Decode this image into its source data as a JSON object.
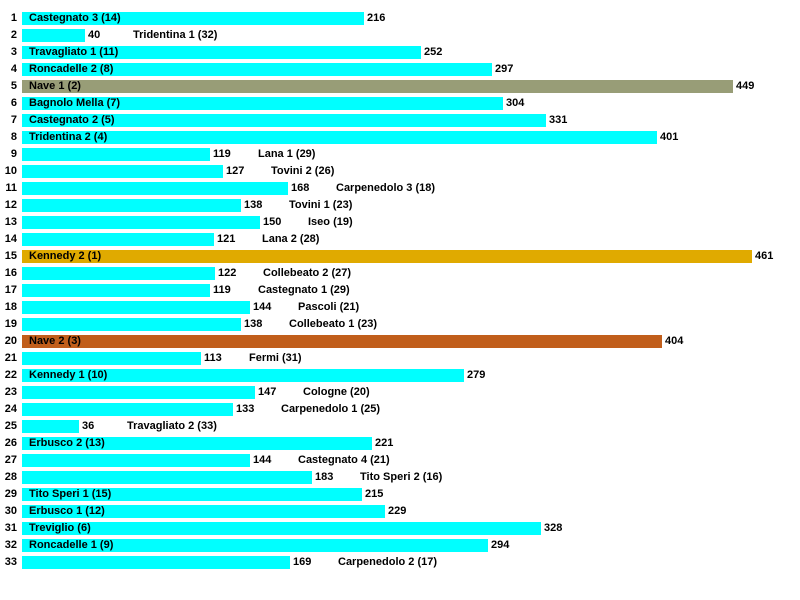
{
  "page": {
    "background": "#FFFFFF",
    "text_color": "#000000"
  },
  "chart_data": {
    "type": "bar",
    "orientation": "horizontal",
    "title": "",
    "xlabel": "",
    "ylabel": "",
    "value_range": [
      0,
      461
    ],
    "grid": false,
    "legend": false,
    "colors": {
      "default_bar": "#00FFFF",
      "highlight_olive": "#989D77",
      "highlight_gold": "#E0AA00",
      "highlight_chocolate": "#C15E1B",
      "text": "#000000",
      "background": "#FFFFFF"
    },
    "rows": [
      {
        "rank": "1",
        "label": "Castegnato 3 (14)",
        "value": 216,
        "label_position": "inside",
        "color": "#00FFFF"
      },
      {
        "rank": "2",
        "label": "Tridentina 1 (32)",
        "value": 40,
        "label_position": "outside",
        "color": "#00FFFF"
      },
      {
        "rank": "3",
        "label": "Travagliato 1 (11)",
        "value": 252,
        "label_position": "inside",
        "color": "#00FFFF"
      },
      {
        "rank": "4",
        "label": "Roncadelle 2 (8)",
        "value": 297,
        "label_position": "inside",
        "color": "#00FFFF"
      },
      {
        "rank": "5",
        "label": "Nave 1 (2)",
        "value": 449,
        "label_position": "inside",
        "color": "#989D77"
      },
      {
        "rank": "6",
        "label": "Bagnolo Mella (7)",
        "value": 304,
        "label_position": "inside",
        "color": "#00FFFF"
      },
      {
        "rank": "7",
        "label": "Castegnato 2 (5)",
        "value": 331,
        "label_position": "inside",
        "color": "#00FFFF"
      },
      {
        "rank": "8",
        "label": "Tridentina 2 (4)",
        "value": 401,
        "label_position": "inside",
        "color": "#00FFFF"
      },
      {
        "rank": "9",
        "label": "Lana 1 (29)",
        "value": 119,
        "label_position": "outside",
        "color": "#00FFFF"
      },
      {
        "rank": "10",
        "label": "Tovini 2 (26)",
        "value": 127,
        "label_position": "outside",
        "color": "#00FFFF"
      },
      {
        "rank": "11",
        "label": "Carpenedolo 3 (18)",
        "value": 168,
        "label_position": "outside",
        "color": "#00FFFF"
      },
      {
        "rank": "12",
        "label": "Tovini 1 (23)",
        "value": 138,
        "label_position": "outside",
        "color": "#00FFFF"
      },
      {
        "rank": "13",
        "label": "Iseo (19)",
        "value": 150,
        "label_position": "outside",
        "color": "#00FFFF"
      },
      {
        "rank": "14",
        "label": "Lana 2 (28)",
        "value": 121,
        "label_position": "outside",
        "color": "#00FFFF"
      },
      {
        "rank": "15",
        "label": "Kennedy 2 (1)",
        "value": 461,
        "label_position": "inside",
        "color": "#E0AA00"
      },
      {
        "rank": "16",
        "label": "Collebeato 2 (27)",
        "value": 122,
        "label_position": "outside",
        "color": "#00FFFF"
      },
      {
        "rank": "17",
        "label": "Castegnato 1 (29)",
        "value": 119,
        "label_position": "outside",
        "color": "#00FFFF"
      },
      {
        "rank": "18",
        "label": "Pascoli (21)",
        "value": 144,
        "label_position": "outside",
        "color": "#00FFFF"
      },
      {
        "rank": "19",
        "label": "Collebeato 1 (23)",
        "value": 138,
        "label_position": "outside",
        "color": "#00FFFF"
      },
      {
        "rank": "20",
        "label": "Nave 2 (3)",
        "value": 404,
        "label_position": "inside",
        "color": "#C15E1B"
      },
      {
        "rank": "21",
        "label": "Fermi (31)",
        "value": 113,
        "label_position": "outside",
        "color": "#00FFFF"
      },
      {
        "rank": "22",
        "label": "Kennedy 1 (10)",
        "value": 279,
        "label_position": "inside",
        "color": "#00FFFF"
      },
      {
        "rank": "23",
        "label": "Cologne (20)",
        "value": 147,
        "label_position": "outside",
        "color": "#00FFFF"
      },
      {
        "rank": "24",
        "label": "Carpenedolo 1 (25)",
        "value": 133,
        "label_position": "outside",
        "color": "#00FFFF"
      },
      {
        "rank": "25",
        "label": "Travagliato 2 (33)",
        "value": 36,
        "label_position": "outside",
        "color": "#00FFFF"
      },
      {
        "rank": "26",
        "label": "Erbusco 2 (13)",
        "value": 221,
        "label_position": "inside",
        "color": "#00FFFF"
      },
      {
        "rank": "27",
        "label": "Castegnato 4 (21)",
        "value": 144,
        "label_position": "outside",
        "color": "#00FFFF"
      },
      {
        "rank": "28",
        "label": "Tito Speri 2 (16)",
        "value": 183,
        "label_position": "outside",
        "color": "#00FFFF"
      },
      {
        "rank": "29",
        "label": "Tito Speri 1 (15)",
        "value": 215,
        "label_position": "inside",
        "color": "#00FFFF"
      },
      {
        "rank": "30",
        "label": "Erbusco 1 (12)",
        "value": 229,
        "label_position": "inside",
        "color": "#00FFFF"
      },
      {
        "rank": "31",
        "label": "Treviglio (6)",
        "value": 328,
        "label_position": "inside",
        "color": "#00FFFF"
      },
      {
        "rank": "32",
        "label": "Roncadelle 1 (9)",
        "value": 294,
        "label_position": "inside",
        "color": "#00FFFF"
      },
      {
        "rank": "33",
        "label": "Carpenedolo 2 (17)",
        "value": 169,
        "label_position": "outside",
        "color": "#00FFFF"
      }
    ]
  }
}
